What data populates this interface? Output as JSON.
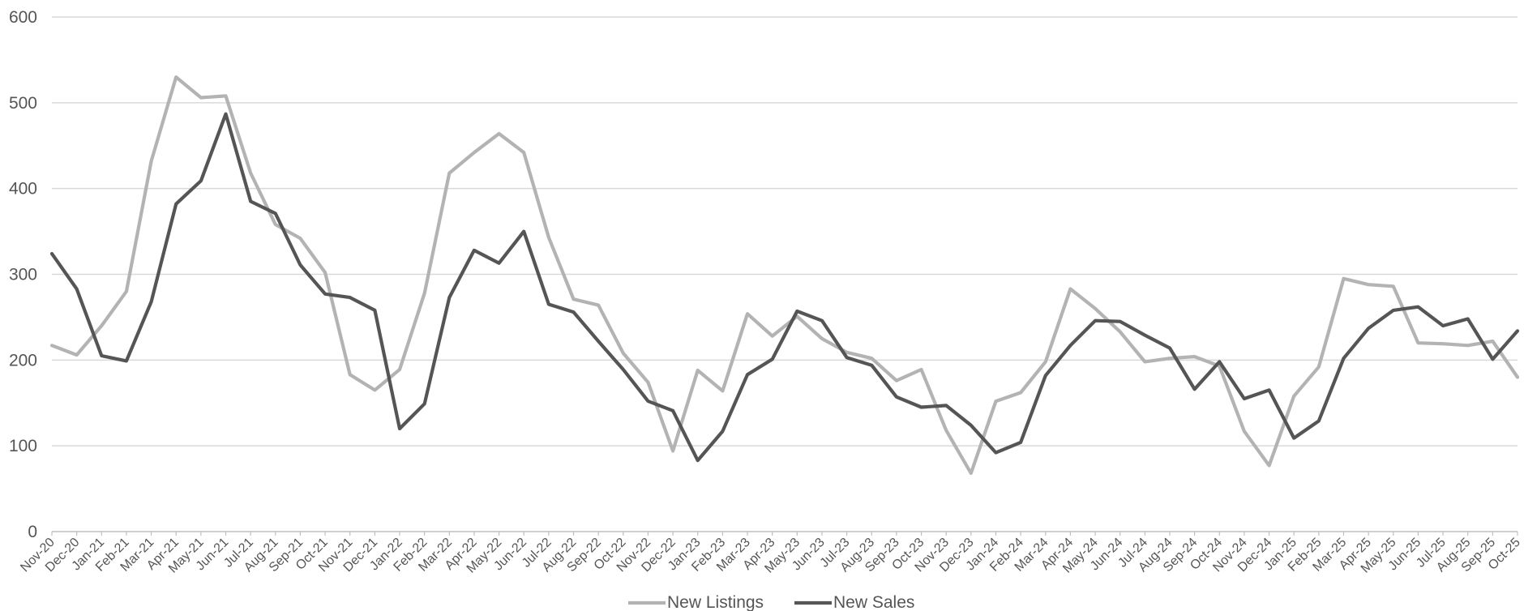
{
  "chart_data": {
    "type": "line",
    "categories": [
      "Nov-20",
      "Dec-20",
      "Jan-21",
      "Feb-21",
      "Mar-21",
      "Apr-21",
      "May-21",
      "Jun-21",
      "Jul-21",
      "Aug-21",
      "Sep-21",
      "Oct-21",
      "Nov-21",
      "Dec-21",
      "Jan-22",
      "Feb-22",
      "Mar-22",
      "Apr-22",
      "May-22",
      "Jun-22",
      "Jul-22",
      "Aug-22",
      "Sep-22",
      "Oct-22",
      "Nov-22",
      "Dec-22",
      "Jan-23",
      "Feb-23",
      "Mar-23",
      "Apr-23",
      "May-23",
      "Jun-23",
      "Jul-23",
      "Aug-23",
      "Sep-23",
      "Oct-23",
      "Nov-23",
      "Dec-23",
      "Jan-24",
      "Feb-24",
      "Mar-24",
      "Apr-24",
      "May-24",
      "Jun-24",
      "Jul-24",
      "Aug-24",
      "Sep-24",
      "Oct-24",
      "Nov-24",
      "Dec-24",
      "Jan-25",
      "Feb-25",
      "Mar-25",
      "Apr-25",
      "May-25",
      "Jun-25",
      "Jul-25",
      "Aug-25",
      "Sep-25",
      "Oct-25"
    ],
    "series": [
      {
        "name": "New Listings",
        "color": "#b3b3b3",
        "values": [
          217,
          206,
          240,
          280,
          432,
          530,
          506,
          508,
          418,
          358,
          342,
          302,
          183,
          165,
          189,
          278,
          418,
          442,
          464,
          442,
          343,
          271,
          264,
          208,
          174,
          94,
          188,
          164,
          254,
          228,
          251,
          225,
          209,
          202,
          176,
          189,
          118,
          68,
          152,
          162,
          198,
          283,
          260,
          233,
          198,
          202,
          204,
          193,
          117,
          77,
          158,
          192,
          295,
          288,
          286,
          220,
          219,
          217,
          222,
          180
        ]
      },
      {
        "name": "New Sales",
        "color": "#555555",
        "values": [
          324,
          283,
          205,
          199,
          268,
          382,
          409,
          487,
          385,
          371,
          311,
          277,
          273,
          258,
          120,
          149,
          273,
          328,
          313,
          350,
          265,
          256,
          222,
          189,
          152,
          141,
          83,
          117,
          183,
          201,
          257,
          246,
          203,
          194,
          157,
          145,
          147,
          124,
          92,
          104,
          182,
          217,
          246,
          245,
          229,
          214,
          166,
          198,
          155,
          165,
          109,
          129,
          202,
          237,
          258,
          262,
          240,
          248,
          201,
          234
        ]
      }
    ],
    "ylim": [
      0,
      600
    ],
    "yticks": [
      0,
      100,
      200,
      300,
      400,
      500,
      600
    ],
    "yticks_text": [
      "0",
      "100",
      "200",
      "300",
      "400",
      "500",
      "600"
    ],
    "grid": true,
    "legend_position": "bottom-center"
  }
}
